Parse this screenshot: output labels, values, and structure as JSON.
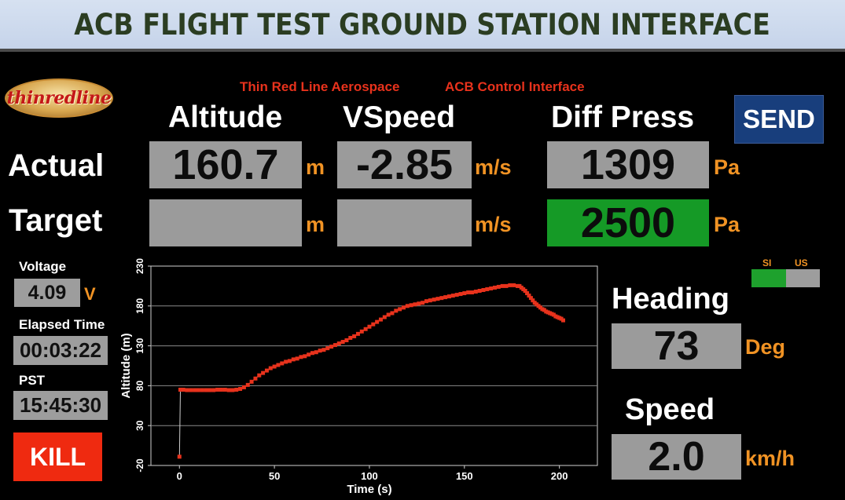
{
  "banner": {
    "title": "ACB FLIGHT TEST GROUND STATION INTERFACE"
  },
  "logo": {
    "text": "thinredline"
  },
  "subtitle": {
    "company": "Thin Red Line Aerospace",
    "interface": "ACB Control Interface"
  },
  "columns": {
    "altitude": "Altitude",
    "vspeed": "VSpeed",
    "diffpress": "Diff Press"
  },
  "rows": {
    "actual": "Actual",
    "target": "Target"
  },
  "actual": {
    "altitude": "160.7",
    "altitude_unit": "m",
    "vspeed": "-2.85",
    "vspeed_unit": "m/s",
    "diffpress": "1309",
    "diffpress_unit": "Pa"
  },
  "target": {
    "altitude": "",
    "altitude_unit": "m",
    "vspeed": "",
    "vspeed_unit": "m/s",
    "diffpress": "2500",
    "diffpress_unit": "Pa"
  },
  "send_button": "SEND",
  "voltage": {
    "label": "Voltage",
    "value": "4.09",
    "unit": "V"
  },
  "elapsed": {
    "label": "Elapsed Time",
    "value": "00:03:22"
  },
  "pst": {
    "label": "PST",
    "value": "15:45:30"
  },
  "kill_button": "KILL",
  "unit_toggle": {
    "si": "SI",
    "us": "US",
    "selected": "SI",
    "si_color": "#1ea12d",
    "us_color": "#9d9d9d"
  },
  "heading": {
    "label": "Heading",
    "value": "73",
    "unit": "Deg"
  },
  "speed": {
    "label": "Speed",
    "value": "2.0",
    "unit": "km/h"
  },
  "colors": {
    "accent_orange": "#f19324",
    "title_red": "#e8321c",
    "send_blue": "#183e7c",
    "kill_red": "#ef2a10",
    "target_green": "#159a26",
    "trace": "#e8321c"
  },
  "chart_data": {
    "type": "scatter",
    "xlabel": "Time (s)",
    "ylabel": "Altitude (m)",
    "xlim": [
      -15,
      220
    ],
    "ylim": [
      -20,
      230
    ],
    "xticks": [
      0,
      50,
      100,
      150,
      200
    ],
    "yticks": [
      -20,
      30,
      80,
      130,
      180,
      230
    ],
    "grid": true,
    "series": [
      {
        "color": "#e8321c",
        "x": [
          0,
          0.5,
          1,
          2,
          4,
          6,
          8,
          10,
          12,
          14,
          16,
          18,
          20,
          22,
          24,
          26,
          28,
          30,
          32,
          34,
          36,
          38,
          40,
          42,
          44,
          46,
          48,
          50,
          52,
          54,
          56,
          58,
          60,
          62,
          64,
          66,
          68,
          70,
          72,
          74,
          76,
          78,
          80,
          82,
          84,
          86,
          88,
          90,
          92,
          94,
          96,
          98,
          100,
          102,
          104,
          106,
          108,
          110,
          112,
          114,
          116,
          118,
          120,
          122,
          124,
          126,
          128,
          130,
          132,
          134,
          136,
          138,
          140,
          142,
          144,
          146,
          148,
          150,
          152,
          154,
          156,
          158,
          160,
          162,
          164,
          166,
          168,
          170,
          172,
          174,
          176,
          178,
          179,
          180,
          181,
          182,
          183,
          184,
          185,
          186,
          187,
          188,
          189,
          190,
          191,
          192,
          193,
          194,
          195,
          196,
          197,
          198,
          199,
          200,
          201,
          202
        ],
        "y": [
          -9,
          75,
          75,
          75,
          74.5,
          74.5,
          74.5,
          74.5,
          74.5,
          74.5,
          74.5,
          74.5,
          75,
          75,
          75,
          74.5,
          74.5,
          75,
          76,
          78,
          81,
          85,
          89,
          93,
          96,
          99,
          102,
          104,
          106,
          108,
          110,
          111,
          113,
          114,
          116,
          117,
          119,
          121,
          122,
          124,
          125,
          127,
          129,
          131,
          133,
          135,
          137,
          140,
          142,
          145,
          148,
          151,
          154,
          157,
          160,
          163,
          166,
          169,
          171,
          174,
          176,
          178,
          180,
          181,
          182,
          183,
          184,
          186,
          187,
          188,
          189,
          190,
          191,
          192,
          193,
          194,
          195,
          196,
          197,
          197,
          198,
          199,
          200,
          201,
          202,
          203,
          204,
          205,
          205,
          206,
          206,
          205,
          205,
          203,
          201,
          199,
          196,
          193,
          190,
          187,
          184,
          182,
          180,
          178,
          176,
          175,
          173,
          172,
          171,
          170,
          169,
          167,
          166,
          165,
          164,
          162
        ]
      }
    ]
  }
}
